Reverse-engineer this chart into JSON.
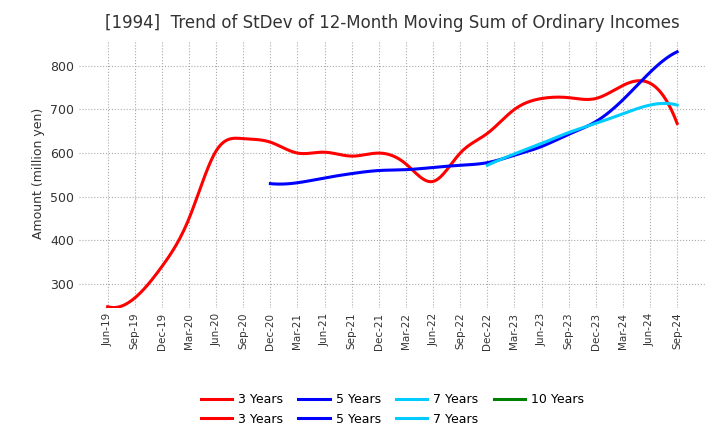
{
  "title": "[1994]  Trend of StDev of 12-Month Moving Sum of Ordinary Incomes",
  "ylabel": "Amount (million yen)",
  "ylim": [
    245,
    860
  ],
  "yticks": [
    300,
    400,
    500,
    600,
    700,
    800
  ],
  "background_color": "#ffffff",
  "plot_bg_color": "#ffffff",
  "title_fontsize": 12,
  "legend_labels": [
    "3 Years",
    "5 Years",
    "7 Years",
    "10 Years"
  ],
  "legend_colors": [
    "#ff0000",
    "#0000ff",
    "#00ccff",
    "#008000"
  ],
  "x_labels": [
    "Jun-19",
    "Sep-19",
    "Dec-19",
    "Mar-20",
    "Jun-20",
    "Sep-20",
    "Dec-20",
    "Mar-21",
    "Jun-21",
    "Sep-21",
    "Dec-21",
    "Mar-22",
    "Jun-22",
    "Sep-22",
    "Dec-22",
    "Mar-23",
    "Jun-23",
    "Sep-23",
    "Dec-23",
    "Mar-24",
    "Jun-24",
    "Sep-24"
  ],
  "series_3yr": [
    248,
    268,
    340,
    450,
    605,
    633,
    625,
    600,
    602,
    593,
    600,
    575,
    535,
    600,
    645,
    700,
    725,
    727,
    725,
    755,
    760,
    668
  ],
  "series_5yr": [
    null,
    null,
    null,
    null,
    null,
    null,
    530,
    532,
    543,
    553,
    560,
    562,
    567,
    572,
    578,
    595,
    615,
    643,
    672,
    722,
    785,
    832
  ],
  "series_7yr": [
    null,
    null,
    null,
    null,
    null,
    null,
    null,
    null,
    null,
    null,
    null,
    null,
    null,
    null,
    572,
    598,
    622,
    647,
    668,
    690,
    710,
    710
  ],
  "series_10yr": [
    null,
    null,
    null,
    null,
    null,
    null,
    null,
    null,
    null,
    null,
    null,
    null,
    null,
    null,
    null,
    null,
    null,
    null,
    null,
    null,
    null,
    null
  ]
}
